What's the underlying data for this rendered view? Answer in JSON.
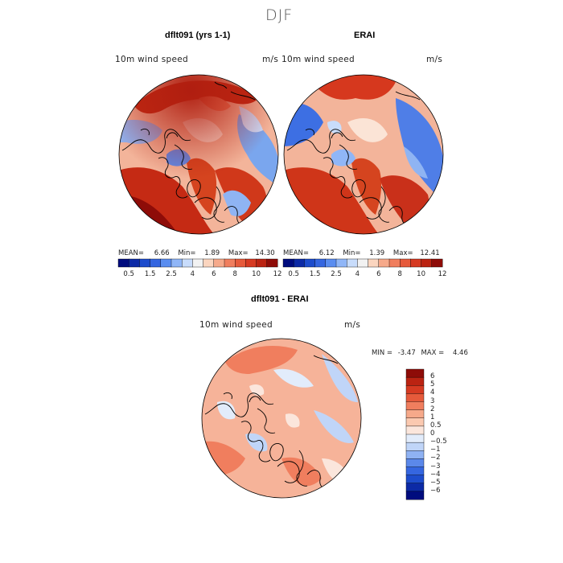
{
  "season_title": "DJF",
  "panels": [
    {
      "title": "dflt091 (yrs 1-1)",
      "variable_label": "10m wind speed",
      "units": "m/s",
      "stats": {
        "mean_label": "MEAN=",
        "mean": "6.66",
        "min_label": "Min=",
        "min": "1.89",
        "max_label": "Max=",
        "max": "14.30"
      }
    },
    {
      "title": "ERAI",
      "variable_label": "10m wind speed",
      "units": "m/s",
      "stats": {
        "mean_label": "MEAN=",
        "mean": "6.12",
        "min_label": "Min=",
        "min": "1.39",
        "max_label": "Max=",
        "max": "12.41"
      }
    },
    {
      "title": "dflt091 - ERAI",
      "variable_label": "10m wind speed",
      "units": "m/s",
      "stats": {
        "min_label": "MIN =",
        "min": "-3.47",
        "max_label": "MAX =",
        "max": "4.46"
      }
    }
  ],
  "abs_colorbar": {
    "labels": [
      "0.5",
      "1.5",
      "2.5",
      "4",
      "6",
      "8",
      "10",
      "12"
    ],
    "colors": [
      "#000c7e",
      "#0c2aa6",
      "#1d4ccc",
      "#3566e0",
      "#5a8df0",
      "#90b6f7",
      "#c8dcfb",
      "#f2f2f2",
      "#fbd5bf",
      "#f6a98a",
      "#f07e5e",
      "#e65a3b",
      "#d63a22",
      "#bb2312",
      "#8e0c08"
    ]
  },
  "diff_colorbar": {
    "labels": [
      "6",
      "5",
      "4",
      "3",
      "2",
      "1",
      "0.5",
      "0",
      "−0.5",
      "−1",
      "−2",
      "−3",
      "−4",
      "−5",
      "−6"
    ],
    "colors": [
      "#8e0c08",
      "#bb2312",
      "#d63a22",
      "#e65a3b",
      "#f07e5e",
      "#f6a98a",
      "#fbc9b0",
      "#fbe6dc",
      "#e2ecfb",
      "#c0d5f8",
      "#8fb2f3",
      "#5b88ea",
      "#3566e0",
      "#1d4ccc",
      "#0c2aa6",
      "#000c7e"
    ]
  }
}
